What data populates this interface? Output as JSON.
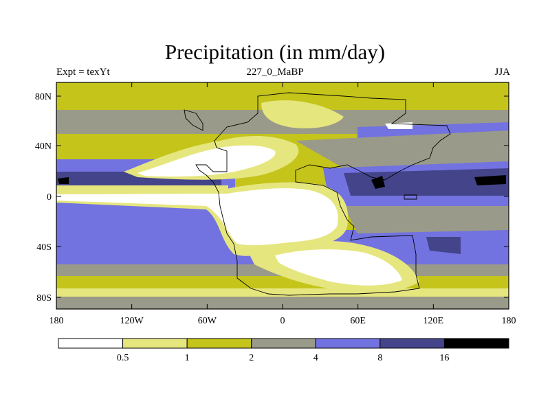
{
  "title": "Precipitation (in mm/day)",
  "subtitle_left": "Expt = texYt",
  "subtitle_center": "227_0_MaBP",
  "subtitle_right": "JJA",
  "lat_ticks": [
    "80N",
    "40N",
    "0",
    "40S",
    "80S"
  ],
  "lon_ticks": [
    "180",
    "120W",
    "60W",
    "0",
    "60E",
    "120E",
    "180"
  ],
  "colorbar": {
    "labels": [
      "0.5",
      "1",
      "2",
      "4",
      "8",
      "16"
    ],
    "colors": [
      "#ffffff",
      "#e6e67f",
      "#c4c41b",
      "#9a9a8a",
      "#7272e0",
      "#44448a",
      "#000000"
    ]
  },
  "palette": {
    "white": "#ffffff",
    "light_yellow": "#e6e67f",
    "olive": "#c4c41b",
    "gray": "#9a9a8a",
    "blue": "#7272e0",
    "navy": "#44448a",
    "black": "#000000"
  }
}
